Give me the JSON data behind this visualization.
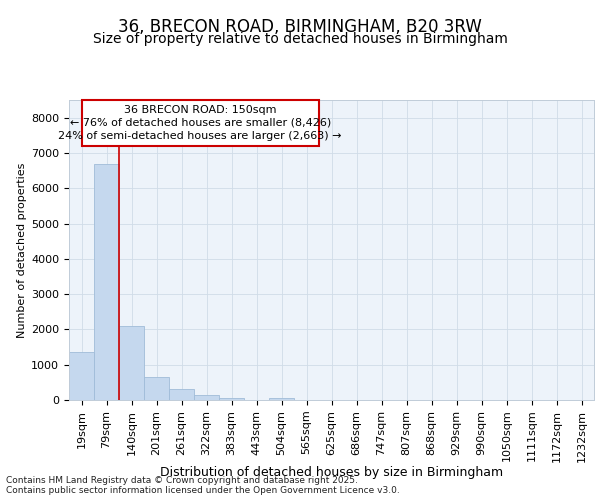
{
  "title1": "36, BRECON ROAD, BIRMINGHAM, B20 3RW",
  "title2": "Size of property relative to detached houses in Birmingham",
  "xlabel": "Distribution of detached houses by size in Birmingham",
  "ylabel": "Number of detached properties",
  "categories": [
    "19sqm",
    "79sqm",
    "140sqm",
    "201sqm",
    "261sqm",
    "322sqm",
    "383sqm",
    "443sqm",
    "504sqm",
    "565sqm",
    "625sqm",
    "686sqm",
    "747sqm",
    "807sqm",
    "868sqm",
    "929sqm",
    "990sqm",
    "1050sqm",
    "1111sqm",
    "1172sqm",
    "1232sqm"
  ],
  "values": [
    1350,
    6700,
    2100,
    650,
    310,
    150,
    70,
    0,
    70,
    0,
    0,
    0,
    0,
    0,
    0,
    0,
    0,
    0,
    0,
    0,
    0
  ],
  "bar_color": "#c5d8ee",
  "bar_edgecolor": "#a0bcd8",
  "vline_between": [
    1,
    2
  ],
  "vline_color": "#cc0000",
  "annotation_line1": "36 BRECON ROAD: 150sqm",
  "annotation_line2": "← 76% of detached houses are smaller (8,426)",
  "annotation_line3": "24% of semi-detached houses are larger (2,663) →",
  "annotation_box_color": "#cc0000",
  "ylim": [
    0,
    8500
  ],
  "yticks": [
    0,
    1000,
    2000,
    3000,
    4000,
    5000,
    6000,
    7000,
    8000
  ],
  "grid_color": "#d0dce8",
  "plot_bg_color": "#edf3fa",
  "fig_bg_color": "#ffffff",
  "footer_text": "Contains HM Land Registry data © Crown copyright and database right 2025.\nContains public sector information licensed under the Open Government Licence v3.0.",
  "title1_fontsize": 12,
  "title2_fontsize": 10,
  "xlabel_fontsize": 9,
  "ylabel_fontsize": 8,
  "tick_fontsize": 8,
  "annot_fontsize": 8
}
